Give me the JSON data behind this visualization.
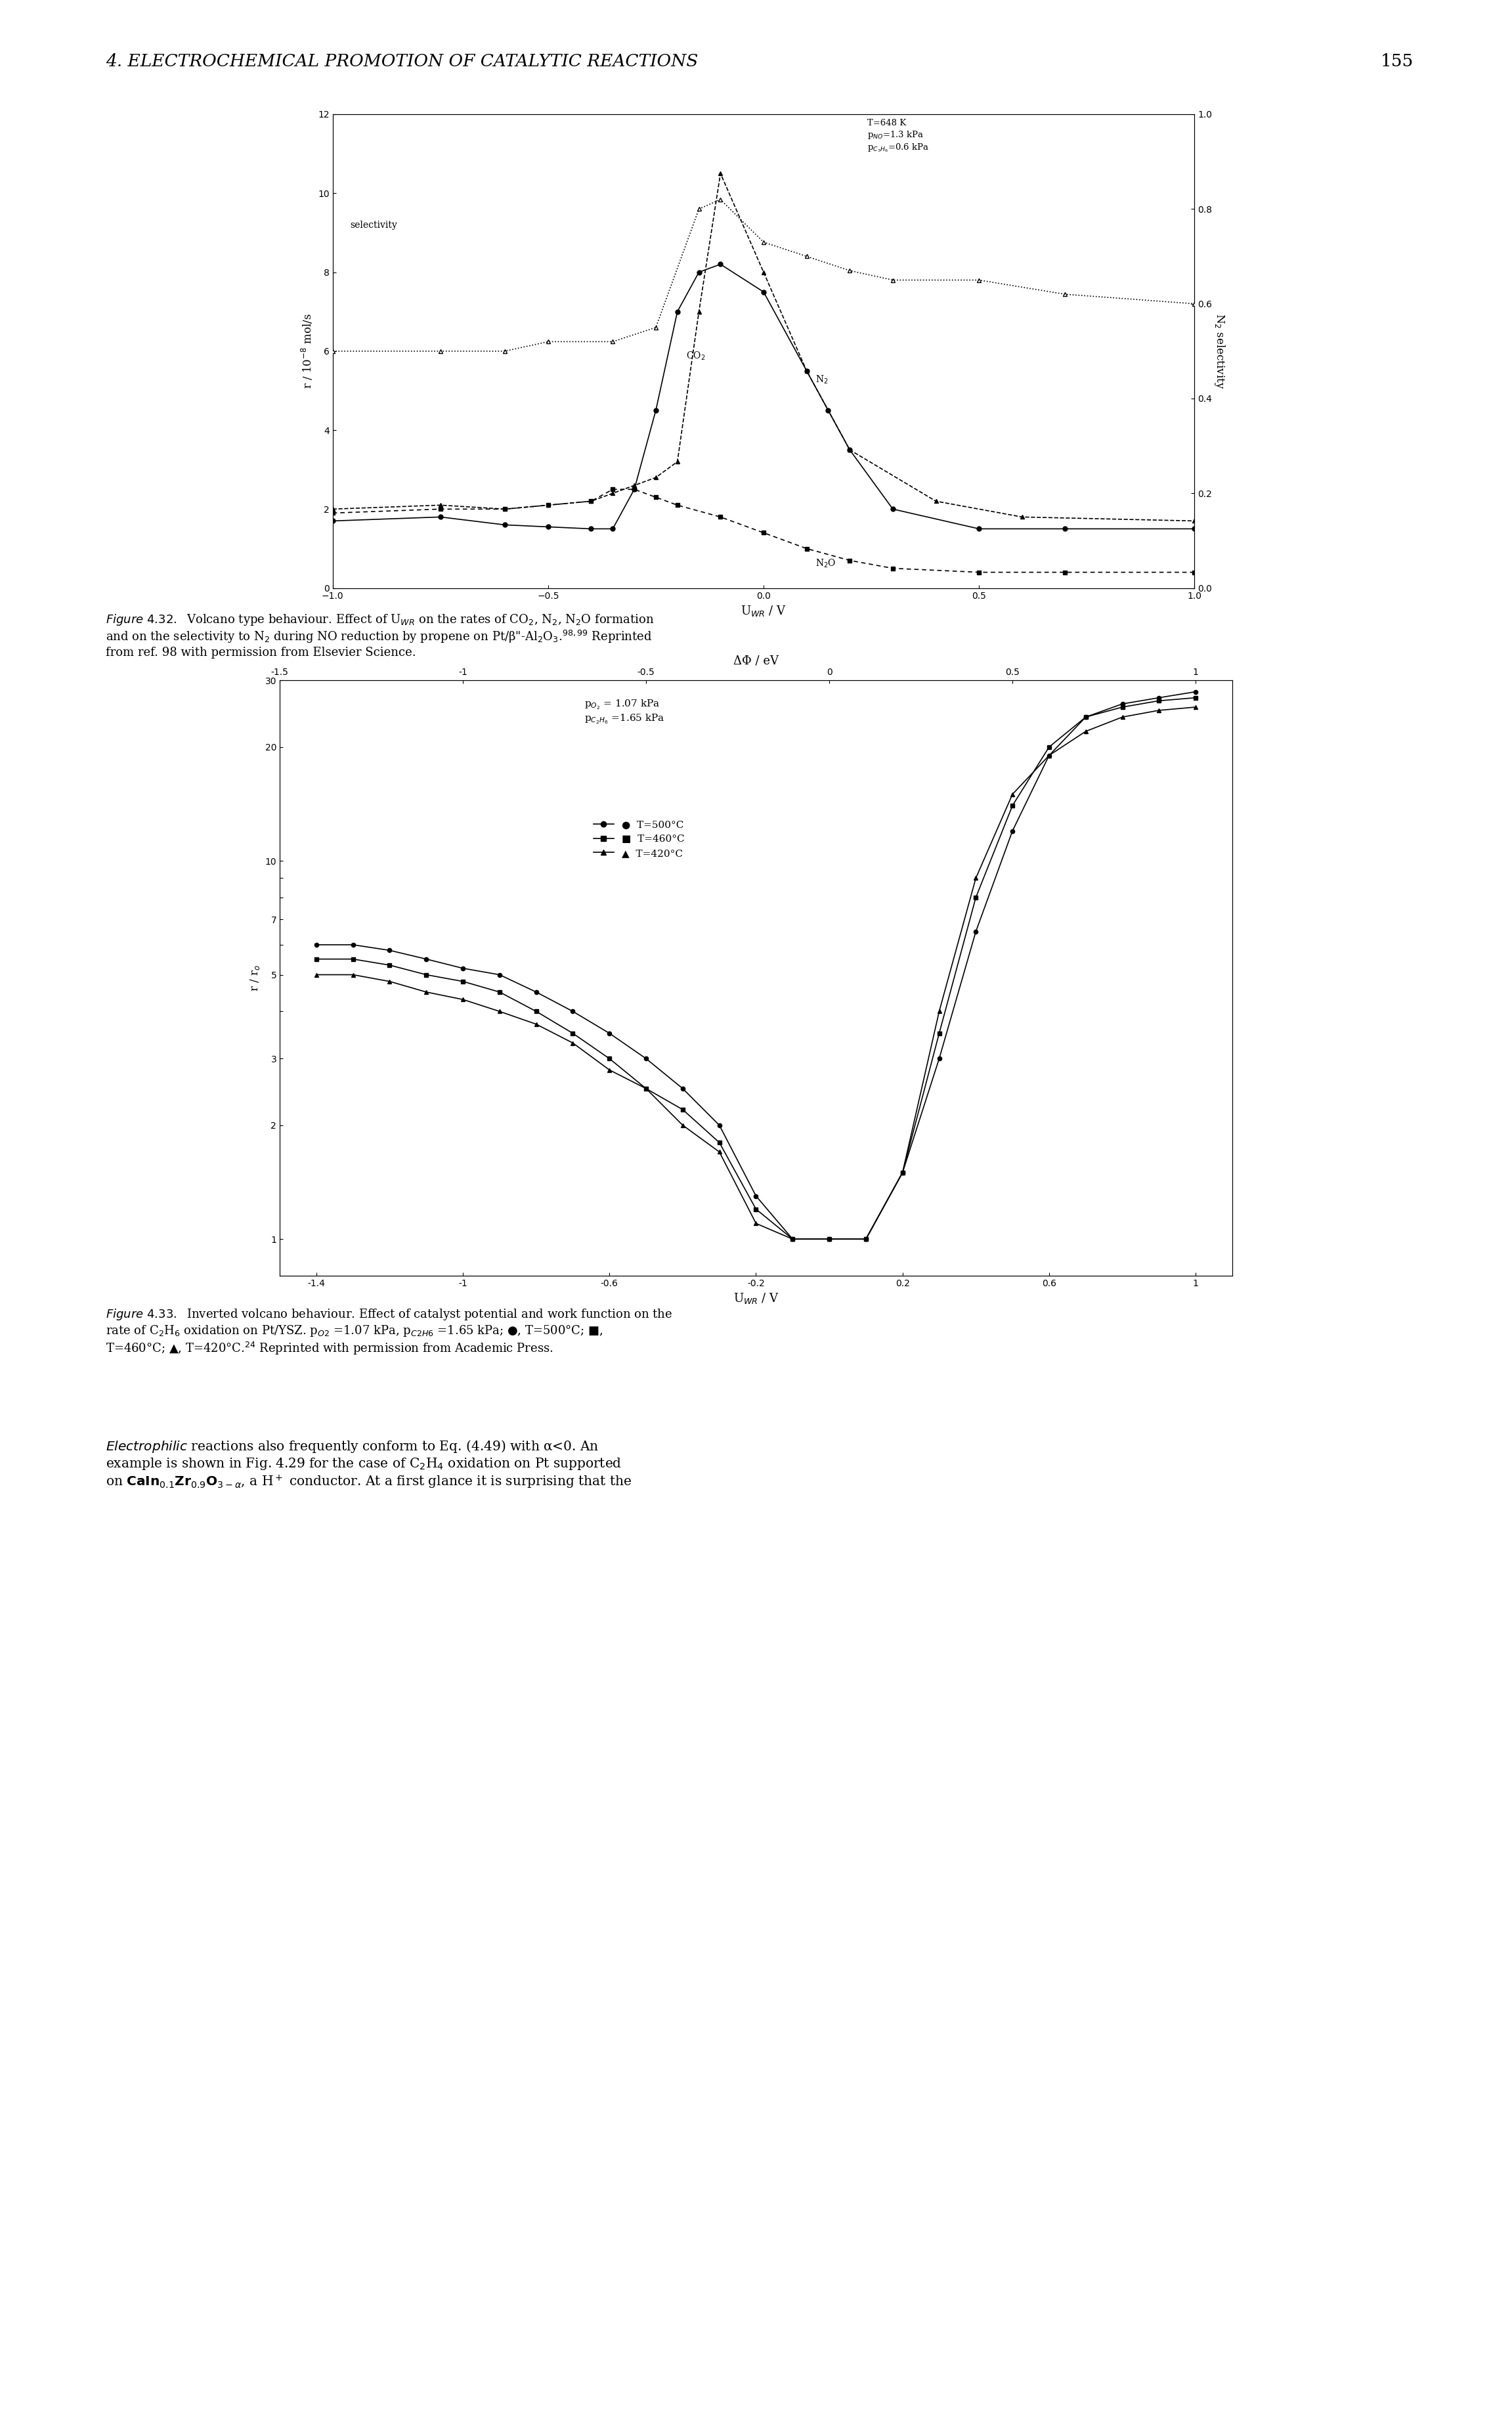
{
  "header_text": "4. ELECTROCHEMICAL PROMOTION OF CATALYTIC REACTIONS",
  "page_number": "155",
  "fig1": {
    "xlabel": "U$_{WR}$ / V",
    "ylabel_left": "r / 10$^{-8}$ mol/s",
    "ylabel_right": "N$_2$ selectivity",
    "xlim": [
      -1.0,
      1.0
    ],
    "ylim_left": [
      0,
      12
    ],
    "ylim_right": [
      0,
      1.0
    ],
    "xticks": [
      -1.0,
      -0.5,
      0.0,
      0.5,
      1.0
    ],
    "yticks_left": [
      0,
      2,
      4,
      6,
      8,
      10,
      12
    ],
    "yticks_right": [
      0,
      0.2,
      0.4,
      0.6,
      0.8,
      1.0
    ],
    "N2_rate_x": [
      -1.0,
      -0.75,
      -0.6,
      -0.5,
      -0.4,
      -0.35,
      -0.3,
      -0.25,
      -0.2,
      -0.15,
      -0.1,
      0.0,
      0.1,
      0.15,
      0.2,
      0.3,
      0.5,
      0.7,
      1.0
    ],
    "N2_rate_y": [
      1.7,
      1.8,
      1.6,
      1.55,
      1.5,
      1.5,
      2.5,
      4.5,
      7.0,
      8.0,
      8.2,
      7.5,
      5.5,
      4.5,
      3.5,
      2.0,
      1.5,
      1.5,
      1.5
    ],
    "CO2_rate_x": [
      -1.0,
      -0.75,
      -0.6,
      -0.5,
      -0.4,
      -0.35,
      -0.3,
      -0.25,
      -0.2,
      -0.15,
      -0.1,
      0.0,
      0.1,
      0.2,
      0.4,
      0.6,
      1.0
    ],
    "CO2_rate_y": [
      2.0,
      2.1,
      2.0,
      2.1,
      2.2,
      2.4,
      2.6,
      2.8,
      3.2,
      7.0,
      10.5,
      8.0,
      5.5,
      3.5,
      2.2,
      1.8,
      1.7
    ],
    "N2O_rate_x": [
      -1.0,
      -0.75,
      -0.6,
      -0.5,
      -0.4,
      -0.35,
      -0.3,
      -0.25,
      -0.2,
      -0.1,
      0.0,
      0.1,
      0.2,
      0.3,
      0.5,
      0.7,
      1.0
    ],
    "N2O_rate_y": [
      1.9,
      2.0,
      2.0,
      2.1,
      2.2,
      2.5,
      2.5,
      2.3,
      2.1,
      1.8,
      1.4,
      1.0,
      0.7,
      0.5,
      0.4,
      0.4,
      0.4
    ],
    "sel_x": [
      -1.0,
      -0.75,
      -0.6,
      -0.5,
      -0.35,
      -0.25,
      -0.15,
      -0.1,
      0.0,
      0.1,
      0.2,
      0.3,
      0.5,
      0.7,
      1.0
    ],
    "sel_y": [
      0.5,
      0.5,
      0.5,
      0.52,
      0.52,
      0.55,
      0.8,
      0.82,
      0.73,
      0.7,
      0.67,
      0.65,
      0.65,
      0.62,
      0.6
    ]
  },
  "fig2": {
    "xlabel": "U$_{WR}$ / V",
    "xlabel2": "ΔΦ / eV",
    "ylabel": "r / r$_o$",
    "xlim": [
      -1.5,
      1.1
    ],
    "ylim": [
      0.8,
      30
    ],
    "xticks_bottom": [
      -1.4,
      -1.0,
      -0.6,
      -0.2,
      0.2,
      0.6,
      1.0
    ],
    "xticks_top": [
      -1.5,
      -1.0,
      -0.5,
      0.0,
      0.5,
      1.0
    ],
    "yticks": [
      1,
      2,
      3,
      4,
      5,
      6,
      7,
      8,
      9,
      10,
      20,
      30
    ],
    "ytick_labels": [
      "1",
      "2",
      "3",
      "",
      "5",
      "",
      "7",
      "",
      "",
      "10",
      "20",
      "30"
    ],
    "T500_x": [
      -1.4,
      -1.3,
      -1.2,
      -1.1,
      -1.0,
      -0.9,
      -0.8,
      -0.7,
      -0.6,
      -0.5,
      -0.4,
      -0.3,
      -0.2,
      -0.1,
      0.0,
      0.1,
      0.2,
      0.3,
      0.4,
      0.5,
      0.6,
      0.7,
      0.8,
      0.9,
      1.0
    ],
    "T500_y": [
      6.0,
      6.0,
      5.8,
      5.5,
      5.2,
      5.0,
      4.5,
      4.0,
      3.5,
      3.0,
      2.5,
      2.0,
      1.3,
      1.0,
      1.0,
      1.0,
      1.5,
      3.0,
      6.5,
      12.0,
      19.0,
      24.0,
      26.0,
      27.0,
      28.0
    ],
    "T460_x": [
      -1.4,
      -1.3,
      -1.2,
      -1.1,
      -1.0,
      -0.9,
      -0.8,
      -0.7,
      -0.6,
      -0.5,
      -0.4,
      -0.3,
      -0.2,
      -0.1,
      0.0,
      0.1,
      0.2,
      0.3,
      0.4,
      0.5,
      0.6,
      0.7,
      0.8,
      0.9,
      1.0
    ],
    "T460_y": [
      5.5,
      5.5,
      5.3,
      5.0,
      4.8,
      4.5,
      4.0,
      3.5,
      3.0,
      2.5,
      2.2,
      1.8,
      1.2,
      1.0,
      1.0,
      1.0,
      1.5,
      3.5,
      8.0,
      14.0,
      20.0,
      24.0,
      25.5,
      26.5,
      27.0
    ],
    "T420_x": [
      -1.4,
      -1.3,
      -1.2,
      -1.1,
      -1.0,
      -0.9,
      -0.8,
      -0.7,
      -0.6,
      -0.5,
      -0.4,
      -0.3,
      -0.2,
      -0.1,
      0.0,
      0.1,
      0.2,
      0.3,
      0.4,
      0.5,
      0.6,
      0.7,
      0.8,
      0.9,
      1.0
    ],
    "T420_y": [
      5.0,
      5.0,
      4.8,
      4.5,
      4.3,
      4.0,
      3.7,
      3.3,
      2.8,
      2.5,
      2.0,
      1.7,
      1.1,
      1.0,
      1.0,
      1.0,
      1.5,
      4.0,
      9.0,
      15.0,
      19.0,
      22.0,
      24.0,
      25.0,
      25.5
    ]
  }
}
